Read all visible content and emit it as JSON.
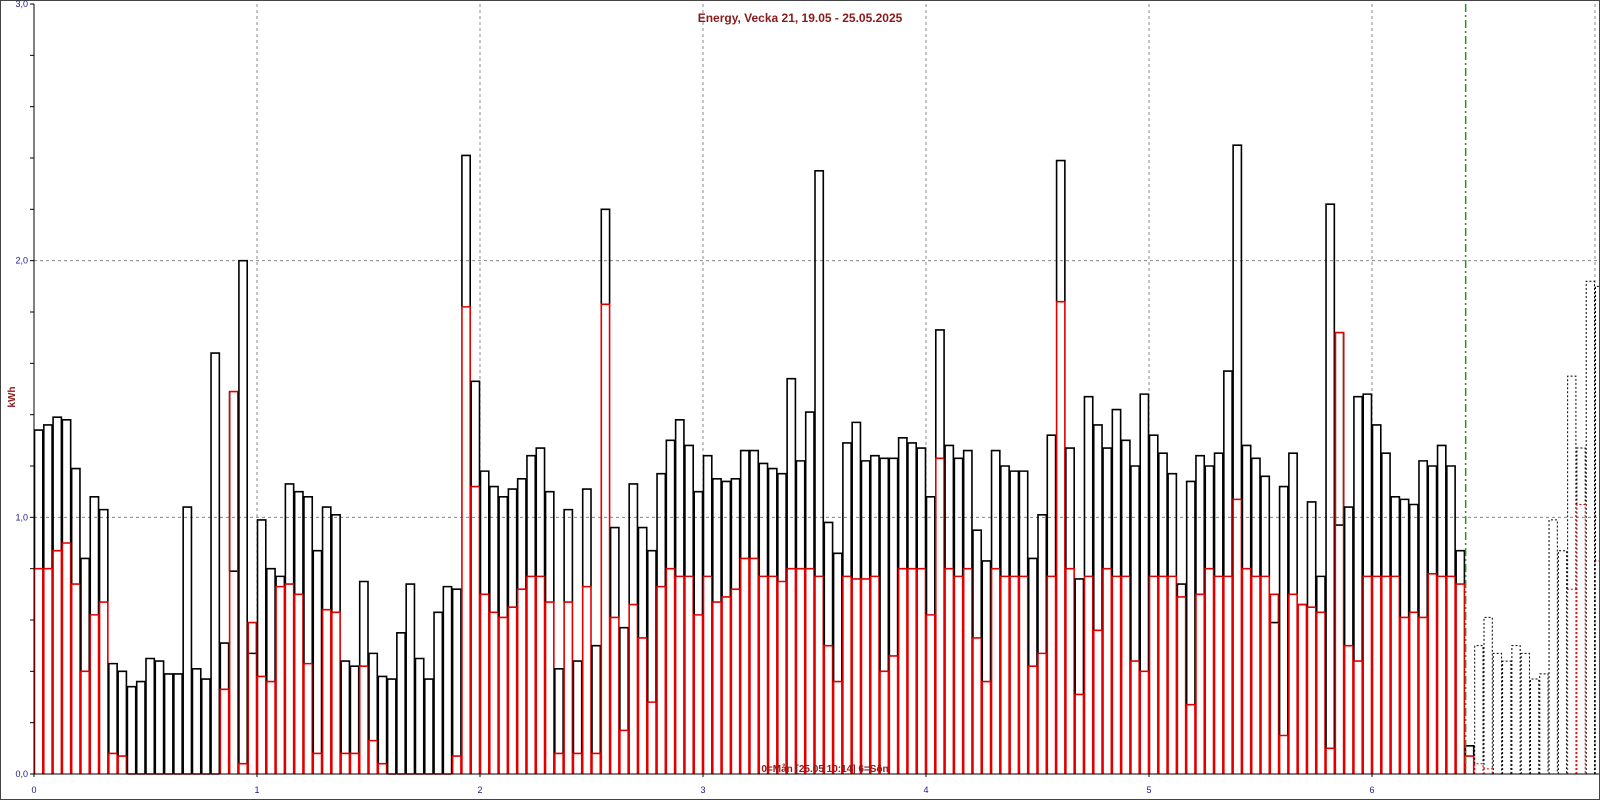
{
  "chart_data": {
    "type": "bar",
    "title": "Energy, Vecka 21, 19.05 - 25.05.2025",
    "ylabel": "kWh",
    "xlabel": "",
    "footer": "0=Mån [25.05 10:14] 6=Sön",
    "ylim": [
      0,
      3
    ],
    "xlim": [
      0,
      7
    ],
    "x_ticks": [
      "0",
      "1",
      "2",
      "3",
      "4",
      "5",
      "6"
    ],
    "y_ticks": [
      "0,0",
      "1,0",
      "2,0",
      "3,0"
    ],
    "grid": true,
    "now_marker_x": 6.42,
    "colors": {
      "total": "#000000",
      "part": "#e00000",
      "now_line": "#2e8b2e",
      "grid": "#888888",
      "title": "#8b1a1a",
      "ticks": "#1a1a8c"
    },
    "series": [
      {
        "values": [
          1.34,
          1.36,
          1.39,
          1.38,
          1.19,
          0.84,
          1.08,
          1.03,
          0.43,
          0.4,
          0.34,
          0.36,
          0.45,
          0.44,
          0.39,
          0.39,
          1.04,
          0.41,
          0.37,
          1.64,
          0.51,
          0.79,
          2.0,
          0.47,
          0.99,
          0.8,
          0.77,
          1.13,
          1.1,
          1.08,
          0.87,
          1.04,
          1.01,
          0.44,
          0.42,
          0.75,
          0.47,
          0.38,
          0.37,
          0.55,
          0.74,
          0.45,
          0.37,
          0.63,
          0.73,
          0.72,
          2.41,
          1.53,
          1.18,
          1.12,
          1.08,
          1.11,
          1.15,
          1.24,
          1.27,
          1.1,
          0.41,
          1.03,
          0.44,
          1.11,
          0.5,
          2.2,
          0.96,
          0.57,
          1.13,
          0.96,
          0.87,
          1.17,
          1.3,
          1.38,
          1.28,
          1.1,
          1.24,
          1.15,
          1.14,
          1.15,
          1.26,
          1.26,
          1.21,
          1.19,
          1.17,
          1.54,
          1.22,
          1.41,
          2.35,
          0.98,
          0.86,
          1.29,
          1.37,
          1.22,
          1.24,
          1.23,
          1.23,
          1.31,
          1.29,
          1.27,
          1.08,
          1.73,
          1.28,
          1.23,
          1.26,
          0.95,
          0.83,
          1.26,
          1.2,
          1.18,
          1.18,
          0.84,
          1.01,
          1.32,
          2.39,
          1.27,
          0.76,
          1.47,
          1.36,
          1.27,
          1.42,
          1.3,
          1.2,
          1.48,
          1.32,
          1.25,
          1.17,
          0.74,
          1.14,
          1.24,
          1.2,
          1.25,
          1.57,
          2.45,
          1.28,
          1.23,
          1.16,
          0.59,
          1.12,
          1.25,
          0.66,
          1.06,
          0.77,
          2.22,
          0.97,
          1.04,
          1.47,
          1.48,
          1.36,
          1.25,
          1.08,
          1.07,
          1.05,
          1.22,
          1.2,
          1.28,
          1.2,
          0.87,
          0.11
        ]
      },
      {
        "values": [
          0.8,
          0.8,
          0.87,
          0.9,
          0.74,
          0.4,
          0.62,
          0.67,
          0.08,
          0.07,
          0.0,
          0.0,
          0.0,
          0.0,
          0.0,
          0.0,
          0.0,
          0.0,
          0.0,
          0.0,
          0.33,
          1.49,
          0.04,
          0.59,
          0.38,
          0.36,
          0.73,
          0.74,
          0.7,
          0.43,
          0.08,
          0.64,
          0.63,
          0.08,
          0.08,
          0.42,
          0.13,
          0.04,
          0.0,
          0.0,
          0.0,
          0.0,
          0.0,
          0.0,
          0.0,
          0.07,
          1.82,
          1.12,
          0.7,
          0.63,
          0.61,
          0.65,
          0.72,
          0.77,
          0.77,
          0.67,
          0.08,
          0.67,
          0.08,
          0.73,
          0.08,
          1.83,
          0.61,
          0.17,
          0.66,
          0.53,
          0.28,
          0.73,
          0.8,
          0.77,
          0.77,
          0.62,
          0.77,
          0.67,
          0.69,
          0.72,
          0.84,
          0.84,
          0.77,
          0.77,
          0.75,
          0.8,
          0.8,
          0.8,
          0.77,
          0.5,
          0.36,
          0.77,
          0.76,
          0.76,
          0.77,
          0.4,
          0.46,
          0.8,
          0.8,
          0.8,
          0.62,
          1.23,
          0.8,
          0.77,
          0.8,
          0.53,
          0.36,
          0.8,
          0.77,
          0.77,
          0.77,
          0.42,
          0.47,
          0.77,
          1.84,
          0.8,
          0.31,
          0.77,
          0.56,
          0.8,
          0.77,
          0.77,
          0.44,
          0.4,
          0.77,
          0.77,
          0.77,
          0.69,
          0.27,
          0.7,
          0.8,
          0.77,
          0.77,
          1.07,
          0.8,
          0.77,
          0.77,
          0.7,
          0.15,
          0.7,
          0.66,
          0.65,
          0.63,
          0.1,
          1.72,
          0.5,
          0.44,
          0.77,
          0.77,
          0.77,
          0.77,
          0.61,
          0.63,
          0.61,
          0.78,
          0.77,
          0.77,
          0.74,
          0.07,
          0.04
        ]
      },
      {
        "values": [
          0.5,
          0.61,
          0.47,
          0.44,
          0.5,
          0.47,
          0.37,
          0.39,
          0.99,
          0.87,
          1.55,
          1.27,
          1.92,
          1.9,
          1.36
        ]
      },
      {
        "values": [
          0.04,
          0.02,
          0.0,
          0.0,
          0.0,
          0.0,
          0.0,
          0.0,
          0.0,
          0.0,
          0.72,
          1.05,
          0.0,
          0.83,
          0.84
        ]
      }
    ]
  }
}
